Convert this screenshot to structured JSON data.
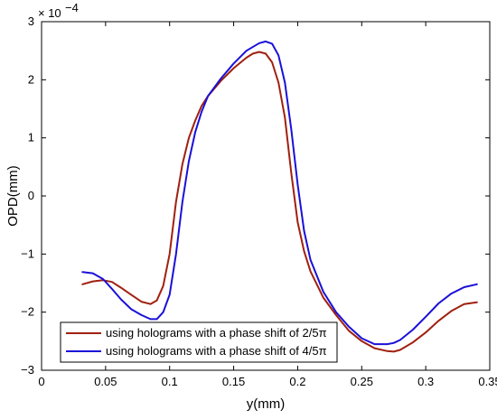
{
  "chart_data": {
    "type": "line",
    "title": "",
    "xlabel": "y(mm)",
    "ylabel": "OPD(mm)",
    "y_exponent_label": "× 10",
    "y_exponent_power": "−4",
    "xlim": [
      0,
      0.35
    ],
    "ylim": [
      -3,
      3
    ],
    "xticks": [
      0,
      0.05,
      0.1,
      0.15,
      0.2,
      0.25,
      0.3,
      0.35
    ],
    "xtick_labels": [
      "0",
      "0.05",
      "0.1",
      "0.15",
      "0.2",
      "0.25",
      "0.3",
      "0.35"
    ],
    "yticks": [
      -3,
      -2,
      -1,
      0,
      1,
      2,
      3
    ],
    "ytick_labels": [
      "−3",
      "−2",
      "−1",
      "0",
      "1",
      "2",
      "3"
    ],
    "grid": false,
    "legend_position": "bottom-left",
    "series": [
      {
        "name": "using holograms with a phase shift of 2/5π",
        "color": "#a02010",
        "x": [
          0.032,
          0.04,
          0.048,
          0.055,
          0.062,
          0.07,
          0.078,
          0.085,
          0.09,
          0.095,
          0.1,
          0.105,
          0.11,
          0.115,
          0.12,
          0.125,
          0.13,
          0.14,
          0.15,
          0.16,
          0.165,
          0.17,
          0.175,
          0.18,
          0.185,
          0.19,
          0.195,
          0.2,
          0.205,
          0.21,
          0.22,
          0.23,
          0.24,
          0.25,
          0.26,
          0.27,
          0.275,
          0.28,
          0.29,
          0.3,
          0.31,
          0.32,
          0.33,
          0.34
        ],
        "y": [
          -1.52,
          -1.47,
          -1.45,
          -1.48,
          -1.58,
          -1.7,
          -1.82,
          -1.86,
          -1.8,
          -1.55,
          -1.0,
          -0.1,
          0.55,
          1.0,
          1.3,
          1.55,
          1.72,
          1.98,
          2.2,
          2.38,
          2.45,
          2.48,
          2.45,
          2.3,
          1.95,
          1.35,
          0.4,
          -0.45,
          -0.95,
          -1.3,
          -1.75,
          -2.05,
          -2.32,
          -2.5,
          -2.62,
          -2.67,
          -2.68,
          -2.65,
          -2.52,
          -2.35,
          -2.15,
          -1.98,
          -1.86,
          -1.83
        ]
      },
      {
        "name": "using holograms with a phase shift of 4/5π",
        "color": "#1a10d8",
        "x": [
          0.032,
          0.04,
          0.048,
          0.055,
          0.062,
          0.07,
          0.078,
          0.085,
          0.09,
          0.095,
          0.1,
          0.105,
          0.11,
          0.115,
          0.12,
          0.125,
          0.13,
          0.14,
          0.15,
          0.16,
          0.17,
          0.175,
          0.18,
          0.185,
          0.19,
          0.195,
          0.2,
          0.205,
          0.21,
          0.22,
          0.23,
          0.24,
          0.25,
          0.26,
          0.27,
          0.275,
          0.28,
          0.29,
          0.3,
          0.31,
          0.32,
          0.33,
          0.34
        ],
        "y": [
          -1.31,
          -1.33,
          -1.43,
          -1.6,
          -1.78,
          -1.95,
          -2.05,
          -2.12,
          -2.12,
          -2.0,
          -1.7,
          -1.0,
          -0.1,
          0.6,
          1.1,
          1.45,
          1.72,
          2.02,
          2.28,
          2.5,
          2.63,
          2.66,
          2.62,
          2.42,
          1.95,
          1.15,
          0.2,
          -0.6,
          -1.1,
          -1.65,
          -2.0,
          -2.25,
          -2.45,
          -2.55,
          -2.55,
          -2.53,
          -2.48,
          -2.3,
          -2.08,
          -1.85,
          -1.68,
          -1.57,
          -1.52
        ]
      }
    ]
  }
}
